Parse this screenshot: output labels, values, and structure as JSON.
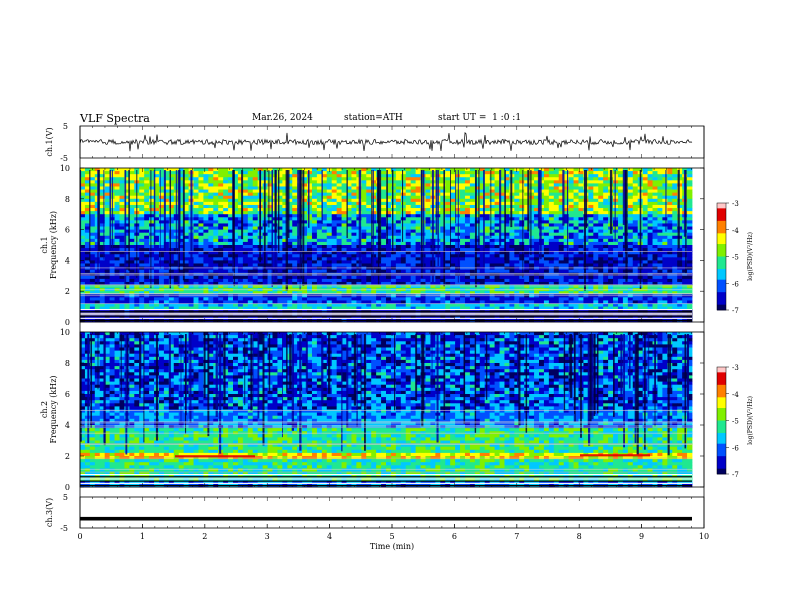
{
  "header": {
    "title": "VLF Spectra",
    "date": "Mar.26, 2024",
    "station": "station=ATH",
    "start_ut": "start UT =  1 :0 :1"
  },
  "chart_data": [
    {
      "type": "line",
      "panel": "ch1-waveform",
      "ylabel": "ch.1(V)",
      "ylim": [
        -5,
        5
      ],
      "y_ticks": [
        "5",
        "-5"
      ],
      "series": [
        {
          "values_summary": "noisy signal centered near 0 V with spikes up to about +2 V and down to about -2 V",
          "baseline": 0
        }
      ],
      "xlim": [
        0,
        10
      ],
      "color": "#000000"
    },
    {
      "type": "heatmap",
      "panel": "ch1-spectrogram",
      "ylabel": "Frequency (kHz)",
      "channel_label": "ch.1",
      "ylim": [
        0,
        10
      ],
      "y_ticks": [
        "0",
        "2",
        "4",
        "6",
        "8",
        "10"
      ],
      "xlim": [
        0,
        10
      ],
      "colorbar": {
        "label": "log(PSD)(V²/Hz)",
        "range": [
          -7,
          -3
        ],
        "ticks": [
          "-3",
          "-4",
          "-5",
          "-6",
          "-7"
        ]
      },
      "bands_summary": [
        {
          "freq_range": [
            0,
            0.8
          ],
          "level": -6.8
        },
        {
          "freq_range": [
            0.8,
            1.2
          ],
          "level": -5.5
        },
        {
          "freq_range": [
            1.2,
            1.8
          ],
          "level": -6.3
        },
        {
          "freq_range": [
            1.8,
            2.5
          ],
          "level": -5.2
        },
        {
          "freq_range": [
            2.5,
            5.0
          ],
          "level": -6.5
        },
        {
          "freq_range": [
            5.0,
            7.0
          ],
          "level": -5.8
        },
        {
          "freq_range": [
            7.0,
            10.0
          ],
          "level": -4.8
        }
      ]
    },
    {
      "type": "heatmap",
      "panel": "ch2-spectrogram",
      "ylabel": "Frequency (kHz)",
      "channel_label": "ch.2",
      "ylim": [
        0,
        10
      ],
      "y_ticks": [
        "0",
        "2",
        "4",
        "6",
        "8",
        "10"
      ],
      "xlim": [
        0,
        10
      ],
      "colorbar": {
        "label": "log(PSD)(V²/Hz)",
        "range": [
          -7,
          -3
        ],
        "ticks": [
          "-3",
          "-4",
          "-5",
          "-6",
          "-7"
        ]
      },
      "bands_summary": [
        {
          "freq_range": [
            0,
            0.5
          ],
          "level": -6.0
        },
        {
          "freq_range": [
            0.5,
            1.8
          ],
          "level": -5.3
        },
        {
          "freq_range": [
            1.8,
            2.3
          ],
          "level": -4.3
        },
        {
          "freq_range": [
            2.3,
            3.8
          ],
          "level": -5.2
        },
        {
          "freq_range": [
            3.8,
            5.0
          ],
          "level": -5.9
        },
        {
          "freq_range": [
            5.0,
            10.0
          ],
          "level": -6.2
        }
      ]
    },
    {
      "type": "line",
      "panel": "ch3-waveform",
      "ylabel": "ch.3(V)",
      "ylim": [
        -5,
        5
      ],
      "y_ticks": [
        "5",
        "-5"
      ],
      "series": [
        {
          "values_summary": "flat trace at about -2 V",
          "baseline": -2
        }
      ],
      "xlim": [
        0,
        10
      ],
      "xlabel": "Time (min)",
      "x_ticks": [
        "0",
        "1",
        "2",
        "3",
        "4",
        "5",
        "6",
        "7",
        "8",
        "9",
        "10"
      ]
    }
  ],
  "colormap": [
    "#000060",
    "#0000c8",
    "#0050ff",
    "#00c8ff",
    "#20e890",
    "#80f000",
    "#ffff00",
    "#ff8000",
    "#e00000",
    "#ffc8c8"
  ]
}
